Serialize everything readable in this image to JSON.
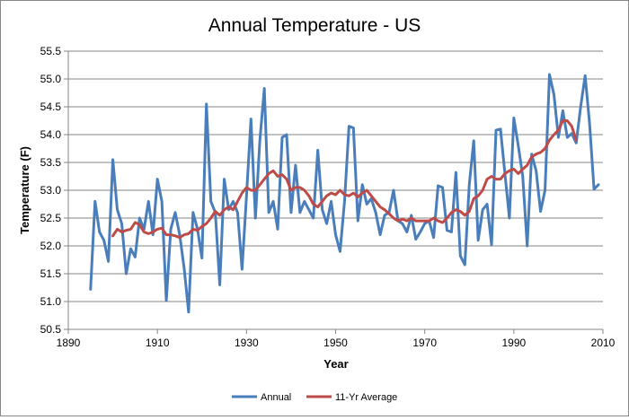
{
  "chart_data": {
    "type": "line",
    "title": "Annual Temperature - US",
    "xlabel": "Year",
    "ylabel": "Temperature (F)",
    "xlim": [
      1890,
      2010
    ],
    "ylim": [
      50.5,
      55.5
    ],
    "x_ticks": [
      "1890",
      "1910",
      "1930",
      "1950",
      "1970",
      "1990",
      "2010"
    ],
    "y_ticks": [
      "50.5",
      "51.0",
      "51.5",
      "52.0",
      "52.5",
      "53.0",
      "53.5",
      "54.0",
      "54.5",
      "55.0",
      "55.5"
    ],
    "grid": "horizontal",
    "legend_position": "bottom",
    "series": [
      {
        "name": "Annual",
        "color": "#4a7ebb",
        "x": [
          1895,
          1896,
          1897,
          1898,
          1899,
          1900,
          1901,
          1902,
          1903,
          1904,
          1905,
          1906,
          1907,
          1908,
          1909,
          1910,
          1911,
          1912,
          1913,
          1914,
          1915,
          1916,
          1917,
          1918,
          1919,
          1920,
          1921,
          1922,
          1923,
          1924,
          1925,
          1926,
          1927,
          1928,
          1929,
          1930,
          1931,
          1932,
          1933,
          1934,
          1935,
          1936,
          1937,
          1938,
          1939,
          1940,
          1941,
          1942,
          1943,
          1944,
          1945,
          1946,
          1947,
          1948,
          1949,
          1950,
          1951,
          1952,
          1953,
          1954,
          1955,
          1956,
          1957,
          1958,
          1959,
          1960,
          1961,
          1962,
          1963,
          1964,
          1965,
          1966,
          1967,
          1968,
          1969,
          1970,
          1971,
          1972,
          1973,
          1974,
          1975,
          1976,
          1977,
          1978,
          1979,
          1980,
          1981,
          1982,
          1983,
          1984,
          1985,
          1986,
          1987,
          1988,
          1989,
          1990,
          1991,
          1992,
          1993,
          1994,
          1995,
          1996,
          1997,
          1998,
          1999,
          2000,
          2001,
          2002,
          2003,
          2004,
          2005,
          2006,
          2007,
          2008,
          2009
        ],
        "values": [
          51.22,
          52.8,
          52.25,
          52.1,
          51.72,
          53.55,
          52.65,
          52.4,
          51.5,
          51.95,
          51.8,
          52.5,
          52.3,
          52.8,
          52.2,
          53.2,
          52.8,
          51.02,
          52.3,
          52.6,
          52.2,
          51.6,
          50.81,
          52.6,
          52.3,
          51.78,
          54.55,
          52.8,
          52.6,
          51.3,
          53.2,
          52.65,
          52.8,
          52.6,
          51.58,
          52.9,
          54.28,
          52.5,
          53.9,
          54.83,
          52.6,
          52.8,
          52.3,
          53.95,
          54.0,
          52.6,
          53.45,
          52.6,
          52.8,
          52.65,
          52.5,
          53.72,
          52.65,
          52.4,
          52.8,
          52.2,
          51.9,
          52.8,
          54.15,
          54.12,
          52.45,
          53.1,
          52.75,
          52.85,
          52.6,
          52.2,
          52.55,
          52.6,
          53.0,
          52.45,
          52.4,
          52.25,
          52.55,
          52.12,
          52.25,
          52.4,
          52.45,
          52.15,
          53.08,
          53.05,
          52.28,
          52.25,
          53.32,
          51.82,
          51.66,
          53.1,
          53.89,
          52.1,
          52.65,
          52.75,
          52.02,
          54.08,
          54.1,
          53.3,
          52.5,
          54.3,
          53.8,
          53.25,
          52.0,
          53.65,
          53.35,
          52.62,
          53.0,
          55.08,
          54.72,
          53.95,
          54.43,
          53.95,
          54.02,
          53.85,
          54.5,
          55.06,
          54.2,
          53.02,
          53.1
        ]
      },
      {
        "name": "11-Yr Average",
        "color": "#be4b48",
        "x": [
          1900,
          1901,
          1902,
          1903,
          1904,
          1905,
          1906,
          1907,
          1908,
          1909,
          1910,
          1911,
          1912,
          1913,
          1914,
          1915,
          1916,
          1917,
          1918,
          1919,
          1920,
          1921,
          1922,
          1923,
          1924,
          1925,
          1926,
          1927,
          1928,
          1929,
          1930,
          1931,
          1932,
          1933,
          1934,
          1935,
          1936,
          1937,
          1938,
          1939,
          1940,
          1941,
          1942,
          1943,
          1944,
          1945,
          1946,
          1947,
          1948,
          1949,
          1950,
          1951,
          1952,
          1953,
          1954,
          1955,
          1956,
          1957,
          1958,
          1959,
          1960,
          1961,
          1962,
          1963,
          1964,
          1965,
          1966,
          1967,
          1968,
          1969,
          1970,
          1971,
          1972,
          1973,
          1974,
          1975,
          1976,
          1977,
          1978,
          1979,
          1980,
          1981,
          1982,
          1983,
          1984,
          1985,
          1986,
          1987,
          1988,
          1989,
          1990,
          1991,
          1992,
          1993,
          1994,
          1995,
          1996,
          1997,
          1998,
          1999,
          2000,
          2001,
          2002,
          2003,
          2004
        ],
        "values": [
          52.18,
          52.3,
          52.25,
          52.28,
          52.3,
          52.42,
          52.38,
          52.25,
          52.22,
          52.25,
          52.3,
          52.32,
          52.2,
          52.2,
          52.18,
          52.15,
          52.2,
          52.22,
          52.3,
          52.28,
          52.35,
          52.4,
          52.5,
          52.62,
          52.55,
          52.65,
          52.7,
          52.65,
          52.8,
          52.95,
          53.05,
          53.0,
          53.0,
          53.1,
          53.2,
          53.3,
          53.35,
          53.25,
          53.28,
          53.2,
          53.0,
          53.05,
          53.05,
          53.0,
          52.9,
          52.75,
          52.7,
          52.8,
          52.9,
          52.95,
          52.92,
          53.0,
          52.92,
          52.9,
          52.95,
          52.88,
          52.95,
          53.0,
          52.9,
          52.8,
          52.7,
          52.65,
          52.58,
          52.5,
          52.45,
          52.48,
          52.45,
          52.5,
          52.45,
          52.45,
          52.45,
          52.45,
          52.5,
          52.45,
          52.42,
          52.5,
          52.6,
          52.65,
          52.62,
          52.55,
          52.62,
          52.85,
          52.9,
          53.0,
          53.2,
          53.25,
          53.2,
          53.2,
          53.3,
          53.35,
          53.38,
          53.3,
          53.38,
          53.45,
          53.6,
          53.65,
          53.68,
          53.75,
          53.9,
          54.0,
          54.08,
          54.25,
          54.25,
          54.15,
          53.9
        ]
      }
    ]
  }
}
